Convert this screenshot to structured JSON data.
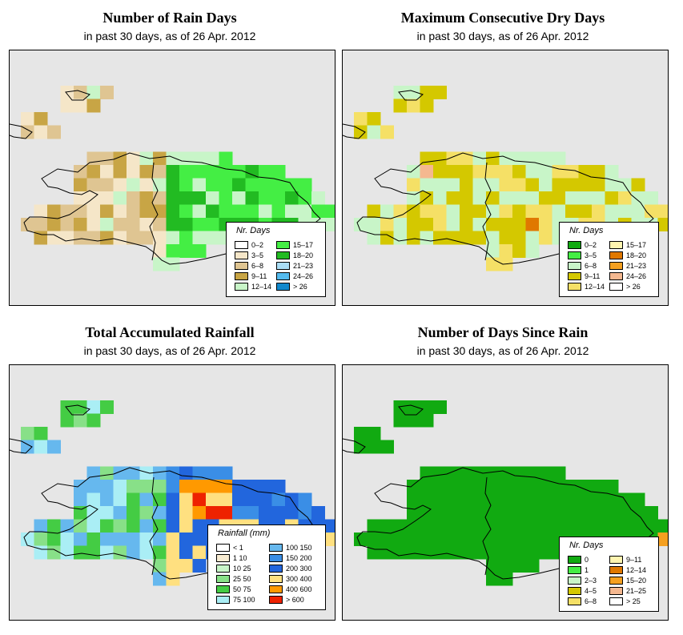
{
  "panels": [
    {
      "id": "rain-days",
      "title": "Number of Rain Days",
      "subtitle": "in past 30 days, as of  26 Apr. 2012",
      "legend_title": "Nr. Days",
      "legend_items": [
        {
          "label": "0–2",
          "color": "#ffffff"
        },
        {
          "label": "3–5",
          "color": "#f5e6c8"
        },
        {
          "label": "6–8",
          "color": "#dfc592"
        },
        {
          "label": "9–11",
          "color": "#c8a545"
        },
        {
          "label": "12–14",
          "color": "#c8f5c8"
        },
        {
          "label": "15–17",
          "color": "#44ee44"
        },
        {
          "label": "18–20",
          "color": "#22bb22"
        },
        {
          "label": "21–23",
          "color": "#aaddf5"
        },
        {
          "label": "24–26",
          "color": "#55bbee"
        },
        {
          "label": "> 26",
          "color": "#1188cc"
        }
      ]
    },
    {
      "id": "dry-days",
      "title": "Maximum Consecutive Dry Days",
      "subtitle": "in past 30 days, as of  26 Apr. 2012",
      "legend_title": "Nr. Days",
      "legend_items": [
        {
          "label": "0–2",
          "color": "#11aa11"
        },
        {
          "label": "3–5",
          "color": "#44ee44"
        },
        {
          "label": "6–8",
          "color": "#c8f5c8"
        },
        {
          "label": "9–11",
          "color": "#d4c800"
        },
        {
          "label": "12–14",
          "color": "#f5e066"
        },
        {
          "label": "15–17",
          "color": "#fff5b0"
        },
        {
          "label": "18–20",
          "color": "#e07800"
        },
        {
          "label": "21–23",
          "color": "#f5a020"
        },
        {
          "label": "24–26",
          "color": "#f5b890"
        },
        {
          "label": "> 26",
          "color": "#ffffff"
        }
      ]
    },
    {
      "id": "rainfall",
      "title": "Total Accumulated Rainfall",
      "subtitle": "in past 30 days, as of  26 Apr. 2012",
      "legend_title": "Rainfall (mm)",
      "legend_items": [
        {
          "label": "< 1",
          "color": "#ffffff"
        },
        {
          "label": "1    10",
          "color": "#f8ecd2"
        },
        {
          "label": "10    25",
          "color": "#c8f5c8"
        },
        {
          "label": "25    50",
          "color": "#88e088"
        },
        {
          "label": "50    75",
          "color": "#44cc44"
        },
        {
          "label": "75    100",
          "color": "#aaeef5"
        },
        {
          "label": "100    150",
          "color": "#66b8ee"
        },
        {
          "label": "150    200",
          "color": "#3a8ee6"
        },
        {
          "label": "200    300",
          "color": "#2266dd"
        },
        {
          "label": "300    400",
          "color": "#ffe080"
        },
        {
          "label": "400    600",
          "color": "#ff9900"
        },
        {
          "label": "> 600",
          "color": "#ee2200"
        }
      ]
    },
    {
      "id": "since-rain",
      "title": "Number of Days Since Rain",
      "subtitle": "in past 30 days, as of  26 Apr. 2012",
      "legend_title": "Nr. Days",
      "legend_items": [
        {
          "label": "0",
          "color": "#11aa11"
        },
        {
          "label": "1",
          "color": "#44ee44"
        },
        {
          "label": "2–3",
          "color": "#c8f5c8"
        },
        {
          "label": "4–5",
          "color": "#d4c800"
        },
        {
          "label": "6–8",
          "color": "#f5e066"
        },
        {
          "label": "9–11",
          "color": "#fff5b0"
        },
        {
          "label": "12–14",
          "color": "#e07800"
        },
        {
          "label": "15–20",
          "color": "#f5a020"
        },
        {
          "label": "21–25",
          "color": "#f5b890"
        },
        {
          "label": "> 25",
          "color": "#ffffff"
        }
      ]
    }
  ]
}
